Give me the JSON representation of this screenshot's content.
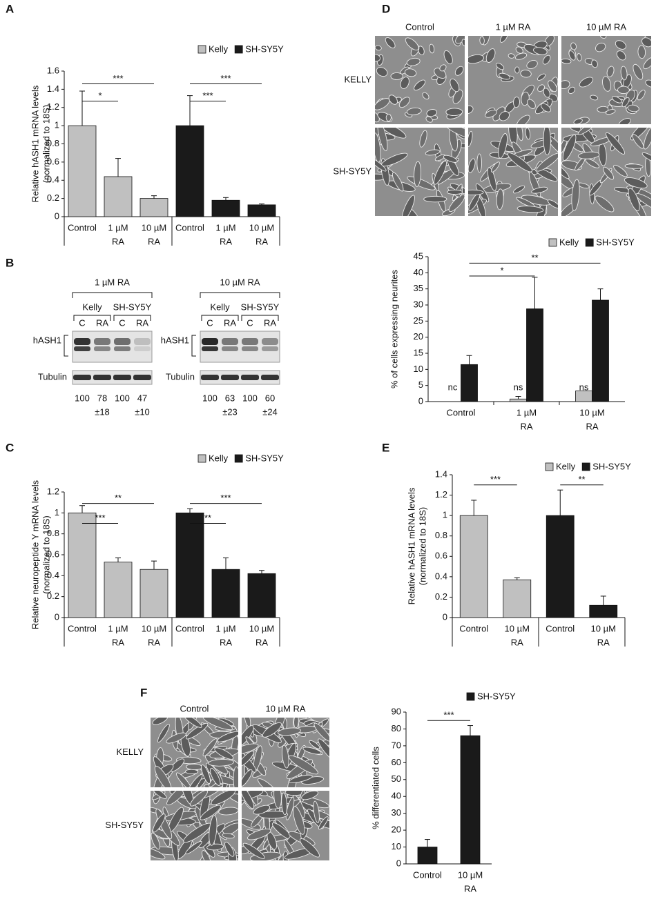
{
  "panel_labels": [
    "A",
    "B",
    "C",
    "D",
    "E",
    "F"
  ],
  "chart_data": [
    {
      "type": "bar",
      "ylabel": [
        "Relative hASH1 mRNA levels",
        "(normalized to 18S)"
      ],
      "categories": [
        [
          "Control"
        ],
        [
          "1 µM",
          "RA"
        ],
        [
          "10 µM",
          "RA"
        ],
        [
          "Control"
        ],
        [
          "1 µM",
          "RA"
        ],
        [
          "10 µM",
          "RA"
        ]
      ],
      "series": [
        {
          "name": "Kelly",
          "color": "#c0c0c0",
          "values": [
            1,
            0.44,
            0.2,
            null,
            null,
            null
          ],
          "errors": [
            0.38,
            0.2,
            0.03,
            null,
            null,
            null
          ]
        },
        {
          "name": "SH-SY5Y",
          "color": "#1a1a1a",
          "values": [
            null,
            null,
            null,
            1,
            0.18,
            0.13
          ],
          "errors": [
            null,
            null,
            null,
            0.33,
            0.03,
            0.01
          ]
        }
      ],
      "ylim": [
        0,
        1.6
      ],
      "yticks": [
        0,
        0.2,
        0.4,
        0.6,
        0.8,
        1,
        1.2,
        1.4,
        1.6
      ],
      "brackets": [
        {
          "from": 0,
          "to": 1,
          "y": 1.27,
          "label": "*"
        },
        {
          "from": 0,
          "to": 2,
          "y": 1.46,
          "label": "***"
        },
        {
          "from": 3,
          "to": 4,
          "y": 1.27,
          "label": "***"
        },
        {
          "from": 3,
          "to": 5,
          "y": 1.46,
          "label": "***"
        }
      ],
      "legend": "top right"
    },
    {
      "type": "bar",
      "ylabel": [
        "Relative neuropeptide Y  mRNA levels",
        "(normalized to 18S)"
      ],
      "categories": [
        [
          "Control"
        ],
        [
          "1 µM",
          "RA"
        ],
        [
          "10 µM",
          "RA"
        ],
        [
          "Control"
        ],
        [
          "1 µM",
          "RA"
        ],
        [
          "10 µM",
          "RA"
        ]
      ],
      "series": [
        {
          "name": "Kelly",
          "color": "#c0c0c0",
          "values": [
            1,
            0.53,
            0.46,
            null,
            null,
            null
          ],
          "errors": [
            0.07,
            0.04,
            0.08,
            null,
            null,
            null
          ]
        },
        {
          "name": "SH-SY5Y",
          "color": "#1a1a1a",
          "values": [
            null,
            null,
            null,
            1,
            0.46,
            0.42
          ],
          "errors": [
            null,
            null,
            null,
            0.04,
            0.11,
            0.03
          ]
        }
      ],
      "ylim": [
        0,
        1.2
      ],
      "yticks": [
        0,
        0.2,
        0.4,
        0.6,
        0.8,
        1,
        1.2
      ],
      "brackets": [
        {
          "from": 0,
          "to": 1,
          "y": 0.9,
          "label": "***"
        },
        {
          "from": 0,
          "to": 2,
          "y": 1.09,
          "label": "**"
        },
        {
          "from": 3,
          "to": 4,
          "y": 0.9,
          "label": "**"
        },
        {
          "from": 3,
          "to": 5,
          "y": 1.09,
          "label": "***"
        }
      ],
      "legend": "top right"
    },
    {
      "type": "bar",
      "ylabel": [
        "% of cells expressing neurites"
      ],
      "categories": [
        [
          "Control"
        ],
        [
          "1 µM",
          "RA"
        ],
        [
          "10 µM",
          "RA"
        ]
      ],
      "series": [
        {
          "name": "Kelly",
          "color": "#c0c0c0",
          "values": [
            null,
            0.8,
            3.3
          ],
          "errors": [
            null,
            0.8,
            null
          ],
          "notes": [
            "nc",
            "ns",
            "ns"
          ]
        },
        {
          "name": "SH-SY5Y",
          "color": "#1a1a1a",
          "values": [
            11.5,
            28.8,
            31.5
          ],
          "errors": [
            2.8,
            9.8,
            3.5
          ]
        }
      ],
      "ylim": [
        0,
        45
      ],
      "yticks": [
        0,
        5,
        10,
        15,
        20,
        25,
        30,
        35,
        40,
        45
      ],
      "brackets": [
        {
          "from": 0,
          "to": 1,
          "y": 39,
          "label": "*"
        },
        {
          "from": 0,
          "to": 2,
          "y": 43,
          "label": "**"
        }
      ],
      "legend": "top right"
    },
    {
      "type": "bar",
      "ylabel": [
        "Relative hASH1 mRNA levels",
        "(normalized to 18S)"
      ],
      "categories": [
        [
          "Control"
        ],
        [
          "10 µM",
          "RA"
        ],
        [
          "Control"
        ],
        [
          "10 µM",
          "RA"
        ]
      ],
      "series": [
        {
          "name": "Kelly",
          "color": "#c0c0c0",
          "values": [
            1,
            0.37,
            null,
            null
          ],
          "errors": [
            0.15,
            0.02,
            null,
            null
          ]
        },
        {
          "name": "SH-SY5Y",
          "color": "#1a1a1a",
          "values": [
            null,
            null,
            1,
            0.12
          ],
          "errors": [
            null,
            null,
            0.25,
            0.09
          ]
        }
      ],
      "ylim": [
        0,
        1.4
      ],
      "yticks": [
        0,
        0.2,
        0.4,
        0.6,
        0.8,
        1,
        1.2,
        1.4
      ],
      "brackets": [
        {
          "from": 0,
          "to": 1,
          "y": 1.3,
          "label": "***"
        },
        {
          "from": 2,
          "to": 3,
          "y": 1.3,
          "label": "**"
        }
      ],
      "legend": "top right"
    },
    {
      "type": "bar",
      "ylabel": [
        "% differentiated cells"
      ],
      "categories": [
        [
          "Control"
        ],
        [
          "10 µM",
          "RA"
        ]
      ],
      "series": [
        {
          "name": "SH-SY5Y",
          "color": "#1a1a1a",
          "values": [
            10,
            76
          ],
          "errors": [
            4.5,
            6
          ]
        }
      ],
      "ylim": [
        0,
        90
      ],
      "yticks": [
        0,
        10,
        20,
        30,
        40,
        50,
        60,
        70,
        80,
        90
      ],
      "brackets": [
        {
          "from": 0,
          "to": 1,
          "y": 85,
          "label": "***"
        }
      ],
      "legend": "top"
    }
  ],
  "blot": {
    "panels": [
      {
        "treatment": "1 µM RA",
        "cell_lines": [
          "Kelly",
          "SH-SY5Y"
        ],
        "lanes": [
          "C",
          "RA",
          "C",
          "RA"
        ],
        "rows": [
          "hASH1",
          "Tubulin"
        ],
        "quantification": [
          100,
          78,
          100,
          47
        ],
        "deviation": [
          "±18",
          "±10"
        ]
      },
      {
        "treatment": "10 µM RA",
        "cell_lines": [
          "Kelly",
          "SH-SY5Y"
        ],
        "lanes": [
          "C",
          "RA",
          "C",
          "RA"
        ],
        "rows": [
          "hASH1",
          "Tubulin"
        ],
        "quantification": [
          100,
          63,
          100,
          60
        ],
        "deviation": [
          "±23",
          "±24"
        ]
      }
    ]
  },
  "micrographs": [
    {
      "columns": [
        "Control",
        "1 µM RA",
        "10 µM RA"
      ],
      "rows": [
        "KELLY",
        "SH-SY5Y"
      ]
    },
    {
      "columns": [
        "Control",
        "10 µM RA"
      ],
      "rows": [
        "KELLY",
        "SH-SY5Y"
      ]
    }
  ]
}
